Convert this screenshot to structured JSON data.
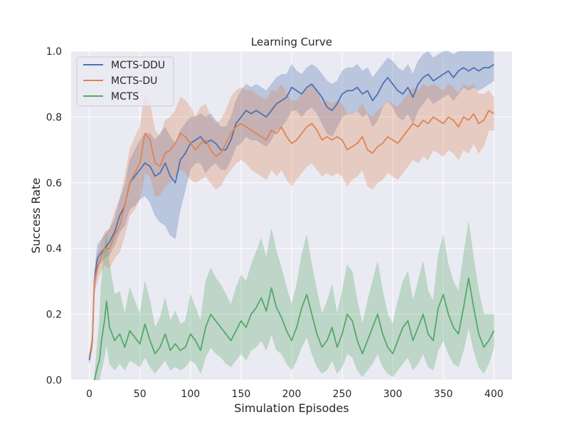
{
  "chart_data": {
    "type": "line",
    "title": "Learning Curve",
    "xlabel": "Simulation Episodes",
    "ylabel": "Success Rate",
    "xlim": [
      -18,
      418
    ],
    "ylim": [
      0,
      1
    ],
    "xticks": [
      0,
      50,
      100,
      150,
      200,
      250,
      300,
      350,
      400
    ],
    "yticks": [
      0.0,
      0.2,
      0.4,
      0.6,
      0.8,
      1.0
    ],
    "xtick_labels": [
      "0",
      "50",
      "100",
      "150",
      "200",
      "250",
      "300",
      "350",
      "400"
    ],
    "ytick_labels": [
      "0.0",
      "0.2",
      "0.4",
      "0.6",
      "0.8",
      "1.0"
    ],
    "grid": true,
    "legend_position": "top-left",
    "background": "#EAEAF2",
    "series": [
      {
        "name": "MCTS-DDU",
        "color": "#4C72B0",
        "x": [
          0,
          3,
          5,
          8,
          10,
          15,
          20,
          25,
          30,
          35,
          40,
          45,
          50,
          55,
          60,
          65,
          70,
          75,
          80,
          85,
          90,
          95,
          100,
          105,
          110,
          115,
          120,
          125,
          130,
          135,
          140,
          145,
          150,
          155,
          160,
          165,
          170,
          175,
          180,
          185,
          190,
          195,
          200,
          205,
          210,
          215,
          220,
          225,
          230,
          235,
          240,
          245,
          250,
          255,
          260,
          265,
          270,
          275,
          280,
          285,
          290,
          295,
          300,
          305,
          310,
          315,
          320,
          325,
          330,
          335,
          340,
          345,
          350,
          355,
          360,
          365,
          370,
          375,
          380,
          385,
          390,
          395,
          400
        ],
        "y": [
          0.06,
          0.12,
          0.3,
          0.37,
          0.38,
          0.4,
          0.42,
          0.45,
          0.5,
          0.53,
          0.6,
          0.62,
          0.64,
          0.66,
          0.65,
          0.62,
          0.63,
          0.66,
          0.62,
          0.6,
          0.67,
          0.69,
          0.72,
          0.73,
          0.74,
          0.72,
          0.73,
          0.72,
          0.7,
          0.7,
          0.73,
          0.78,
          0.8,
          0.82,
          0.81,
          0.82,
          0.81,
          0.8,
          0.82,
          0.84,
          0.85,
          0.86,
          0.89,
          0.88,
          0.87,
          0.89,
          0.9,
          0.88,
          0.86,
          0.83,
          0.82,
          0.84,
          0.87,
          0.88,
          0.88,
          0.89,
          0.87,
          0.88,
          0.85,
          0.87,
          0.9,
          0.92,
          0.9,
          0.88,
          0.87,
          0.89,
          0.86,
          0.9,
          0.92,
          0.93,
          0.91,
          0.92,
          0.93,
          0.94,
          0.92,
          0.94,
          0.95,
          0.94,
          0.95,
          0.94,
          0.95,
          0.95,
          0.96
        ],
        "lower": [
          0.05,
          0.1,
          0.27,
          0.33,
          0.35,
          0.37,
          0.38,
          0.41,
          0.45,
          0.47,
          0.52,
          0.53,
          0.55,
          0.56,
          0.54,
          0.5,
          0.48,
          0.47,
          0.44,
          0.43,
          0.52,
          0.58,
          0.64,
          0.66,
          0.66,
          0.63,
          0.65,
          0.66,
          0.64,
          0.64,
          0.67,
          0.71,
          0.72,
          0.74,
          0.73,
          0.73,
          0.72,
          0.71,
          0.73,
          0.76,
          0.77,
          0.79,
          0.82,
          0.82,
          0.8,
          0.82,
          0.83,
          0.81,
          0.78,
          0.75,
          0.74,
          0.77,
          0.8,
          0.81,
          0.81,
          0.82,
          0.8,
          0.81,
          0.77,
          0.79,
          0.83,
          0.85,
          0.83,
          0.8,
          0.79,
          0.81,
          0.78,
          0.82,
          0.84,
          0.86,
          0.84,
          0.85,
          0.86,
          0.87,
          0.85,
          0.87,
          0.89,
          0.88,
          0.89,
          0.88,
          0.89,
          0.9,
          0.91
        ],
        "upper": [
          0.07,
          0.14,
          0.33,
          0.41,
          0.42,
          0.44,
          0.46,
          0.49,
          0.55,
          0.59,
          0.67,
          0.7,
          0.73,
          0.75,
          0.75,
          0.73,
          0.75,
          0.77,
          0.74,
          0.72,
          0.76,
          0.78,
          0.8,
          0.8,
          0.81,
          0.8,
          0.81,
          0.79,
          0.77,
          0.77,
          0.8,
          0.85,
          0.88,
          0.9,
          0.89,
          0.9,
          0.89,
          0.88,
          0.9,
          0.92,
          0.93,
          0.93,
          0.96,
          0.94,
          0.93,
          0.95,
          0.96,
          0.95,
          0.93,
          0.91,
          0.9,
          0.91,
          0.94,
          0.95,
          0.95,
          0.96,
          0.94,
          0.95,
          0.92,
          0.94,
          0.96,
          0.98,
          0.97,
          0.95,
          0.94,
          0.96,
          0.93,
          0.97,
          0.99,
          1.0,
          0.98,
          0.99,
          1.0,
          1.0,
          0.99,
          1.0,
          1.0,
          1.0,
          1.0,
          1.0,
          1.0,
          1.0,
          1.0
        ]
      },
      {
        "name": "MCTS-DU",
        "color": "#DD8452",
        "x": [
          0,
          3,
          5,
          8,
          10,
          15,
          20,
          25,
          30,
          35,
          40,
          45,
          50,
          55,
          60,
          65,
          70,
          75,
          80,
          85,
          90,
          95,
          100,
          105,
          110,
          115,
          120,
          125,
          130,
          135,
          140,
          145,
          150,
          155,
          160,
          165,
          170,
          175,
          180,
          185,
          190,
          195,
          200,
          205,
          210,
          215,
          220,
          225,
          230,
          235,
          240,
          245,
          250,
          255,
          260,
          265,
          270,
          275,
          280,
          285,
          290,
          295,
          300,
          305,
          310,
          315,
          320,
          325,
          330,
          335,
          340,
          345,
          350,
          355,
          360,
          365,
          370,
          375,
          380,
          385,
          390,
          395,
          400
        ],
        "y": [
          0.07,
          0.12,
          0.3,
          0.34,
          0.36,
          0.4,
          0.4,
          0.44,
          0.47,
          0.53,
          0.6,
          0.63,
          0.66,
          0.75,
          0.73,
          0.66,
          0.65,
          0.69,
          0.7,
          0.72,
          0.75,
          0.74,
          0.72,
          0.7,
          0.72,
          0.73,
          0.7,
          0.68,
          0.69,
          0.72,
          0.75,
          0.77,
          0.78,
          0.77,
          0.76,
          0.75,
          0.74,
          0.73,
          0.76,
          0.75,
          0.77,
          0.74,
          0.72,
          0.73,
          0.75,
          0.77,
          0.78,
          0.76,
          0.73,
          0.74,
          0.73,
          0.74,
          0.73,
          0.7,
          0.71,
          0.72,
          0.74,
          0.7,
          0.69,
          0.71,
          0.72,
          0.74,
          0.73,
          0.72,
          0.74,
          0.76,
          0.78,
          0.77,
          0.79,
          0.78,
          0.8,
          0.79,
          0.78,
          0.8,
          0.79,
          0.77,
          0.8,
          0.79,
          0.81,
          0.78,
          0.79,
          0.82,
          0.81
        ],
        "lower": [
          0.06,
          0.1,
          0.27,
          0.3,
          0.32,
          0.35,
          0.34,
          0.37,
          0.39,
          0.44,
          0.5,
          0.52,
          0.55,
          0.63,
          0.62,
          0.56,
          0.56,
          0.59,
          0.6,
          0.62,
          0.64,
          0.63,
          0.61,
          0.6,
          0.61,
          0.62,
          0.6,
          0.58,
          0.59,
          0.62,
          0.64,
          0.66,
          0.67,
          0.66,
          0.64,
          0.63,
          0.62,
          0.61,
          0.64,
          0.62,
          0.64,
          0.61,
          0.59,
          0.61,
          0.63,
          0.65,
          0.66,
          0.64,
          0.62,
          0.63,
          0.62,
          0.63,
          0.62,
          0.59,
          0.61,
          0.62,
          0.64,
          0.59,
          0.58,
          0.6,
          0.61,
          0.63,
          0.62,
          0.61,
          0.63,
          0.65,
          0.67,
          0.66,
          0.68,
          0.67,
          0.7,
          0.69,
          0.68,
          0.7,
          0.69,
          0.67,
          0.7,
          0.69,
          0.72,
          0.69,
          0.71,
          0.76,
          0.76
        ],
        "upper": [
          0.08,
          0.14,
          0.33,
          0.38,
          0.4,
          0.45,
          0.46,
          0.51,
          0.55,
          0.62,
          0.7,
          0.74,
          0.77,
          0.87,
          0.84,
          0.76,
          0.74,
          0.79,
          0.8,
          0.82,
          0.86,
          0.85,
          0.83,
          0.8,
          0.83,
          0.84,
          0.8,
          0.78,
          0.79,
          0.82,
          0.86,
          0.88,
          0.89,
          0.88,
          0.88,
          0.87,
          0.86,
          0.85,
          0.88,
          0.88,
          0.9,
          0.87,
          0.85,
          0.85,
          0.87,
          0.89,
          0.9,
          0.88,
          0.84,
          0.85,
          0.84,
          0.85,
          0.84,
          0.81,
          0.81,
          0.82,
          0.84,
          0.81,
          0.8,
          0.82,
          0.83,
          0.85,
          0.84,
          0.83,
          0.85,
          0.87,
          0.89,
          0.88,
          0.9,
          0.89,
          0.9,
          0.89,
          0.88,
          0.9,
          0.89,
          0.87,
          0.9,
          0.89,
          0.9,
          0.87,
          0.87,
          0.88,
          0.86
        ]
      },
      {
        "name": "MCTS",
        "color": "#55A868",
        "x": [
          5,
          8,
          10,
          12,
          15,
          17,
          20,
          25,
          30,
          35,
          40,
          45,
          50,
          55,
          60,
          65,
          70,
          75,
          80,
          85,
          90,
          95,
          100,
          105,
          110,
          115,
          120,
          125,
          130,
          135,
          140,
          145,
          150,
          155,
          160,
          165,
          170,
          175,
          180,
          185,
          190,
          195,
          200,
          205,
          210,
          215,
          220,
          225,
          230,
          235,
          240,
          245,
          250,
          255,
          260,
          265,
          270,
          275,
          280,
          285,
          290,
          295,
          300,
          305,
          310,
          315,
          320,
          325,
          330,
          335,
          340,
          345,
          350,
          355,
          360,
          365,
          370,
          375,
          380,
          385,
          390,
          395,
          400
        ],
        "y": [
          0.0,
          0.04,
          0.06,
          0.12,
          0.18,
          0.24,
          0.16,
          0.12,
          0.14,
          0.1,
          0.15,
          0.13,
          0.11,
          0.17,
          0.12,
          0.08,
          0.1,
          0.14,
          0.09,
          0.11,
          0.09,
          0.1,
          0.14,
          0.12,
          0.09,
          0.16,
          0.2,
          0.18,
          0.16,
          0.14,
          0.12,
          0.15,
          0.18,
          0.16,
          0.2,
          0.22,
          0.25,
          0.21,
          0.28,
          0.22,
          0.19,
          0.15,
          0.12,
          0.16,
          0.22,
          0.26,
          0.2,
          0.14,
          0.1,
          0.12,
          0.16,
          0.1,
          0.14,
          0.2,
          0.18,
          0.12,
          0.08,
          0.12,
          0.16,
          0.2,
          0.14,
          0.1,
          0.08,
          0.12,
          0.16,
          0.18,
          0.12,
          0.16,
          0.2,
          0.14,
          0.12,
          0.22,
          0.26,
          0.2,
          0.16,
          0.14,
          0.22,
          0.31,
          0.22,
          0.14,
          0.1,
          0.12,
          0.15
        ],
        "lower": [
          0.0,
          0.0,
          0.0,
          0.03,
          0.07,
          0.11,
          0.05,
          0.03,
          0.05,
          0.03,
          0.06,
          0.05,
          0.04,
          0.07,
          0.04,
          0.02,
          0.04,
          0.06,
          0.03,
          0.04,
          0.03,
          0.04,
          0.06,
          0.05,
          0.02,
          0.07,
          0.1,
          0.08,
          0.07,
          0.05,
          0.04,
          0.06,
          0.08,
          0.06,
          0.09,
          0.1,
          0.12,
          0.09,
          0.14,
          0.09,
          0.08,
          0.05,
          0.03,
          0.06,
          0.1,
          0.13,
          0.08,
          0.04,
          0.02,
          0.03,
          0.06,
          0.02,
          0.04,
          0.08,
          0.07,
          0.03,
          0.01,
          0.03,
          0.05,
          0.08,
          0.04,
          0.02,
          0.01,
          0.03,
          0.05,
          0.07,
          0.03,
          0.05,
          0.08,
          0.04,
          0.03,
          0.09,
          0.12,
          0.08,
          0.05,
          0.04,
          0.09,
          0.16,
          0.09,
          0.04,
          0.02,
          0.05,
          0.1
        ],
        "upper": [
          0.0,
          0.12,
          0.18,
          0.3,
          0.4,
          0.45,
          0.35,
          0.26,
          0.27,
          0.2,
          0.28,
          0.24,
          0.2,
          0.3,
          0.24,
          0.16,
          0.19,
          0.25,
          0.18,
          0.21,
          0.17,
          0.18,
          0.26,
          0.22,
          0.18,
          0.3,
          0.34,
          0.31,
          0.29,
          0.26,
          0.23,
          0.28,
          0.32,
          0.3,
          0.35,
          0.39,
          0.43,
          0.37,
          0.46,
          0.39,
          0.34,
          0.28,
          0.23,
          0.29,
          0.38,
          0.44,
          0.35,
          0.27,
          0.2,
          0.24,
          0.29,
          0.2,
          0.27,
          0.35,
          0.33,
          0.24,
          0.17,
          0.24,
          0.3,
          0.36,
          0.27,
          0.2,
          0.17,
          0.24,
          0.3,
          0.33,
          0.24,
          0.3,
          0.36,
          0.27,
          0.24,
          0.38,
          0.44,
          0.35,
          0.3,
          0.27,
          0.38,
          0.48,
          0.37,
          0.27,
          0.2,
          0.2,
          0.2
        ]
      }
    ]
  }
}
